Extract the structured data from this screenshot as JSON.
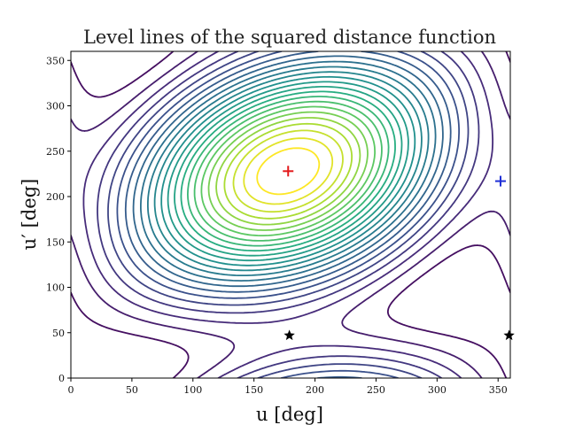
{
  "chart_data": {
    "type": "contour",
    "title": "Level lines of the squared distance function",
    "xlabel": "u [deg]",
    "ylabel": "u′ [deg]",
    "xlim": [
      0,
      360
    ],
    "ylim": [
      0,
      360
    ],
    "xticks": [
      0,
      50,
      100,
      150,
      200,
      250,
      300,
      350
    ],
    "yticks": [
      0,
      50,
      100,
      150,
      200,
      250,
      300,
      350
    ],
    "colormap": "viridis",
    "n_levels": 24,
    "maximum_location": [
      178,
      228
    ],
    "markers": [
      {
        "name": "red-cross",
        "symbol": "+",
        "color": "#e31a1c",
        "x": 178,
        "y": 228
      },
      {
        "name": "blue-cross",
        "symbol": "+",
        "color": "#1f2fd6",
        "x": 352,
        "y": 217
      },
      {
        "name": "black-star",
        "symbol": "★",
        "color": "#000000",
        "x": 179,
        "y": 47
      },
      {
        "name": "black-star",
        "symbol": "★",
        "color": "#000000",
        "x": 359,
        "y": 47
      }
    ]
  }
}
